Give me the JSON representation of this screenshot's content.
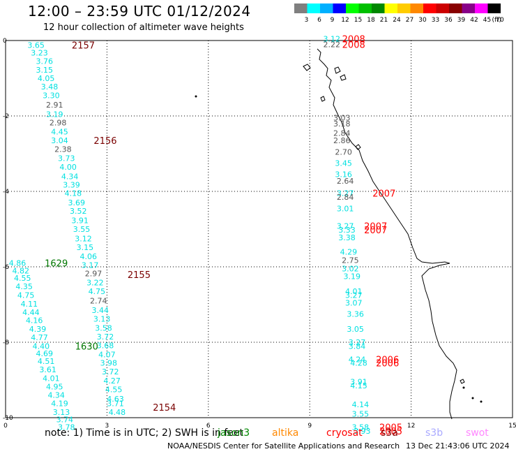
{
  "header": {
    "title": "12:00 – 23:59 UTC 01/12/2024",
    "subtitle": "12 hour collection of altimeter wave heights"
  },
  "legend": {
    "bins": [
      {
        "label": "3",
        "color": "#7f7f7f"
      },
      {
        "label": "6",
        "color": "#00ffff"
      },
      {
        "label": "9",
        "color": "#00b0ff"
      },
      {
        "label": "12",
        "color": "#0000ff"
      },
      {
        "label": "15",
        "color": "#00ff00"
      },
      {
        "label": "18",
        "color": "#00c000"
      },
      {
        "label": "21",
        "color": "#008800"
      },
      {
        "label": "24",
        "color": "#ffff00"
      },
      {
        "label": "27",
        "color": "#ffcc00"
      },
      {
        "label": "30",
        "color": "#ff8800"
      },
      {
        "label": "33",
        "color": "#ff0000"
      },
      {
        "label": "36",
        "color": "#cc0000"
      },
      {
        "label": "39",
        "color": "#880000"
      },
      {
        "label": "42",
        "color": "#880088"
      },
      {
        "label": "45",
        "color": "#ff00ff"
      },
      {
        "label": "70",
        "color": "#000000"
      }
    ],
    "unit": "(ft)"
  },
  "axes": {
    "x_ticks": [
      "0",
      "3",
      "6",
      "9",
      "12",
      "15"
    ],
    "y_ticks": [
      "0",
      "-2",
      "-4",
      "-6",
      "-8",
      "-10"
    ]
  },
  "colors": {
    "cyan": "#00e0e0",
    "gray": "#555555",
    "darkred": "#7a0000",
    "red": "#ff0000",
    "green": "#007700"
  },
  "tracks": {
    "track_2157": {
      "id": "2157",
      "points": [
        {
          "x": 0.9,
          "y": -0.12,
          "v": "3.65",
          "c": "cyan"
        },
        {
          "x": 1.0,
          "y": -0.32,
          "v": "3.23",
          "c": "cyan"
        },
        {
          "x": 1.15,
          "y": -0.55,
          "v": "3.76",
          "c": "cyan"
        },
        {
          "x": 1.15,
          "y": -0.78,
          "v": "3.15",
          "c": "cyan"
        },
        {
          "x": 1.2,
          "y": -1.0,
          "v": "4.05",
          "c": "cyan"
        },
        {
          "x": 1.3,
          "y": -1.22,
          "v": "3.48",
          "c": "cyan"
        },
        {
          "x": 1.35,
          "y": -1.45,
          "v": "3.30",
          "c": "cyan"
        },
        {
          "x": 1.45,
          "y": -1.7,
          "v": "2.91",
          "c": "gray"
        },
        {
          "x": 1.45,
          "y": -1.95,
          "v": "3.19",
          "c": "cyan"
        },
        {
          "x": 1.55,
          "y": -2.18,
          "v": "2.98",
          "c": "gray"
        },
        {
          "x": 1.6,
          "y": -2.42,
          "v": "4.45",
          "c": "cyan"
        },
        {
          "x": 1.6,
          "y": -2.65,
          "v": "3.04",
          "c": "cyan"
        },
        {
          "x": 1.7,
          "y": -2.88,
          "v": "2.38",
          "c": "gray"
        },
        {
          "x": 1.8,
          "y": -3.12,
          "v": "3.73",
          "c": "cyan"
        },
        {
          "x": 1.85,
          "y": -3.35,
          "v": "4.00",
          "c": "cyan"
        },
        {
          "x": 1.9,
          "y": -3.6,
          "v": "4.34",
          "c": "cyan"
        },
        {
          "x": 1.95,
          "y": -3.82,
          "v": "3.39",
          "c": "cyan"
        },
        {
          "x": 2.0,
          "y": -4.05,
          "v": "4.18",
          "c": "cyan"
        },
        {
          "x": 2.1,
          "y": -4.3,
          "v": "3.69",
          "c": "cyan"
        },
        {
          "x": 2.15,
          "y": -4.52,
          "v": "3.52",
          "c": "cyan"
        },
        {
          "x": 2.2,
          "y": -4.77,
          "v": "3.91",
          "c": "cyan"
        },
        {
          "x": 2.25,
          "y": -5.0,
          "v": "3.55",
          "c": "cyan"
        },
        {
          "x": 2.3,
          "y": -5.25,
          "v": "3.12",
          "c": "cyan"
        },
        {
          "x": 2.35,
          "y": -5.48,
          "v": "3.15",
          "c": "cyan"
        },
        {
          "x": 2.45,
          "y": -5.72,
          "v": "4.06",
          "c": "cyan"
        },
        {
          "x": 2.5,
          "y": -5.95,
          "v": "3.17",
          "c": "cyan"
        }
      ]
    },
    "track_2155": {
      "id": "2155",
      "points": [
        {
          "x": 2.6,
          "y": -6.18,
          "v": "2.97",
          "c": "gray"
        },
        {
          "x": 2.65,
          "y": -6.42,
          "v": "3.22",
          "c": "cyan"
        },
        {
          "x": 2.7,
          "y": -6.65,
          "v": "4.75",
          "c": "cyan"
        },
        {
          "x": 2.75,
          "y": -6.9,
          "v": "2.74",
          "c": "gray"
        },
        {
          "x": 2.8,
          "y": -7.15,
          "v": "3.44",
          "c": "cyan"
        },
        {
          "x": 2.85,
          "y": -7.38,
          "v": "3.13",
          "c": "cyan"
        },
        {
          "x": 2.9,
          "y": -7.62,
          "v": "3.58",
          "c": "cyan"
        },
        {
          "x": 2.95,
          "y": -7.85,
          "v": "3.72",
          "c": "cyan"
        },
        {
          "x": 2.95,
          "y": -8.08,
          "v": "3.68",
          "c": "cyan"
        },
        {
          "x": 3.0,
          "y": -8.32,
          "v": "4.07",
          "c": "cyan"
        },
        {
          "x": 3.05,
          "y": -8.55,
          "v": "3.98",
          "c": "cyan"
        },
        {
          "x": 3.1,
          "y": -8.78,
          "v": "3.72",
          "c": "cyan"
        },
        {
          "x": 3.15,
          "y": -9.02,
          "v": "4.27",
          "c": "cyan"
        },
        {
          "x": 3.2,
          "y": -9.25,
          "v": "4.55",
          "c": "cyan"
        },
        {
          "x": 3.25,
          "y": -9.5,
          "v": "4.63",
          "c": "cyan"
        },
        {
          "x": 3.25,
          "y": -9.62,
          "v": "3.71",
          "c": "cyan"
        },
        {
          "x": 3.3,
          "y": -9.85,
          "v": "4.48",
          "c": "cyan"
        }
      ]
    },
    "track_1629": {
      "id": "1629",
      "points": [
        {
          "x": 0.35,
          "y": -5.9,
          "v": "4.86",
          "c": "cyan"
        },
        {
          "x": 0.45,
          "y": -6.1,
          "v": "4.82",
          "c": "cyan"
        },
        {
          "x": 0.5,
          "y": -6.3,
          "v": "4.55",
          "c": "cyan"
        },
        {
          "x": 0.55,
          "y": -6.52,
          "v": "4.35",
          "c": "cyan"
        },
        {
          "x": 0.6,
          "y": -6.75,
          "v": "4.75",
          "c": "cyan"
        },
        {
          "x": 0.7,
          "y": -6.98,
          "v": "4.11",
          "c": "cyan"
        },
        {
          "x": 0.75,
          "y": -7.2,
          "v": "4.44",
          "c": "cyan"
        },
        {
          "x": 0.85,
          "y": -7.42,
          "v": "4.16",
          "c": "cyan"
        },
        {
          "x": 0.95,
          "y": -7.65,
          "v": "4.39",
          "c": "cyan"
        },
        {
          "x": 1.0,
          "y": -7.87,
          "v": "4.77",
          "c": "cyan"
        },
        {
          "x": 1.05,
          "y": -8.1,
          "v": "4.40",
          "c": "cyan"
        }
      ]
    },
    "track_1630": {
      "id": "1630",
      "points": [
        {
          "x": 1.15,
          "y": -8.3,
          "v": "4.69",
          "c": "cyan"
        },
        {
          "x": 1.2,
          "y": -8.5,
          "v": "4.51",
          "c": "cyan"
        },
        {
          "x": 1.25,
          "y": -8.72,
          "v": "3.61",
          "c": "cyan"
        },
        {
          "x": 1.35,
          "y": -8.95,
          "v": "4.01",
          "c": "cyan"
        },
        {
          "x": 1.45,
          "y": -9.18,
          "v": "4.95",
          "c": "cyan"
        },
        {
          "x": 1.5,
          "y": -9.4,
          "v": "4.34",
          "c": "cyan"
        },
        {
          "x": 1.6,
          "y": -9.62,
          "v": "4.19",
          "c": "cyan"
        },
        {
          "x": 1.65,
          "y": -9.85,
          "v": "3.13",
          "c": "cyan"
        },
        {
          "x": 1.75,
          "y": -10.05,
          "v": "3.74",
          "c": "cyan"
        },
        {
          "x": 1.8,
          "y": -10.25,
          "v": "3.78",
          "c": "cyan"
        }
      ]
    },
    "track_2008": {
      "id": "2008",
      "points": [
        {
          "x": 9.65,
          "y": 0.05,
          "v": "3.12",
          "c": "cyan"
        },
        {
          "x": 9.65,
          "y": -0.1,
          "v": "2.22",
          "c": "gray"
        }
      ]
    },
    "track_2007": {
      "id": "2007",
      "points": [
        {
          "x": 9.95,
          "y": -2.05,
          "v": "3.03",
          "c": "gray"
        },
        {
          "x": 9.95,
          "y": -2.2,
          "v": "3.18",
          "c": "gray"
        },
        {
          "x": 9.95,
          "y": -2.45,
          "v": "2.84",
          "c": "gray"
        },
        {
          "x": 9.95,
          "y": -2.65,
          "v": "2.86",
          "c": "gray"
        },
        {
          "x": 10.0,
          "y": -2.95,
          "v": "2.70",
          "c": "gray"
        },
        {
          "x": 10.0,
          "y": -3.25,
          "v": "3.45",
          "c": "cyan"
        },
        {
          "x": 10.0,
          "y": -3.55,
          "v": "3.16",
          "c": "cyan"
        },
        {
          "x": 10.05,
          "y": -3.72,
          "v": "2.64",
          "c": "gray"
        },
        {
          "x": 10.05,
          "y": -4.05,
          "v": "3.27",
          "c": "cyan"
        },
        {
          "x": 10.05,
          "y": -4.15,
          "v": "2.84",
          "c": "gray"
        },
        {
          "x": 10.05,
          "y": -4.45,
          "v": "3.01",
          "c": "cyan"
        },
        {
          "x": 10.05,
          "y": -4.92,
          "v": "3.27",
          "c": "cyan"
        },
        {
          "x": 10.1,
          "y": -5.02,
          "v": "3.33",
          "c": "cyan"
        },
        {
          "x": 10.1,
          "y": -5.22,
          "v": "3.38",
          "c": "cyan"
        },
        {
          "x": 10.15,
          "y": -5.6,
          "v": "4.29",
          "c": "cyan"
        },
        {
          "x": 10.2,
          "y": -5.82,
          "v": "2.75",
          "c": "gray"
        }
      ]
    },
    "track_2006": {
      "id": "2006",
      "points": [
        {
          "x": 10.2,
          "y": -6.05,
          "v": "3.02",
          "c": "cyan"
        },
        {
          "x": 10.25,
          "y": -6.25,
          "v": "3.19",
          "c": "cyan"
        },
        {
          "x": 10.3,
          "y": -6.65,
          "v": "4.01",
          "c": "cyan"
        },
        {
          "x": 10.3,
          "y": -6.75,
          "v": "3.27",
          "c": "cyan"
        },
        {
          "x": 10.3,
          "y": -6.95,
          "v": "3.07",
          "c": "cyan"
        },
        {
          "x": 10.35,
          "y": -7.25,
          "v": "3.36",
          "c": "cyan"
        },
        {
          "x": 10.35,
          "y": -7.65,
          "v": "3.05",
          "c": "cyan"
        },
        {
          "x": 10.4,
          "y": -8.0,
          "v": "3.27",
          "c": "cyan"
        },
        {
          "x": 10.4,
          "y": -8.1,
          "v": "3.84",
          "c": "cyan"
        },
        {
          "x": 10.4,
          "y": -8.45,
          "v": "4.24",
          "c": "cyan"
        },
        {
          "x": 10.45,
          "y": -8.55,
          "v": "4.28",
          "c": "cyan"
        },
        {
          "x": 10.45,
          "y": -9.05,
          "v": "3.91",
          "c": "cyan"
        },
        {
          "x": 10.45,
          "y": -9.15,
          "v": "4.15",
          "c": "cyan"
        }
      ]
    },
    "track_2005": {
      "id": "2005",
      "points": [
        {
          "x": 10.5,
          "y": -9.65,
          "v": "4.14",
          "c": "cyan"
        },
        {
          "x": 10.5,
          "y": -9.9,
          "v": "3.55",
          "c": "cyan"
        },
        {
          "x": 10.5,
          "y": -10.25,
          "v": "3.58",
          "c": "cyan"
        },
        {
          "x": 10.55,
          "y": -10.35,
          "v": "3.93",
          "c": "cyan"
        }
      ]
    }
  },
  "track_labels": [
    {
      "t": "2157",
      "x": 2.3,
      "y": -0.12,
      "c": "darkred"
    },
    {
      "t": "2156",
      "x": 2.95,
      "y": -2.65,
      "c": "darkred"
    },
    {
      "t": "2155",
      "x": 3.95,
      "y": -6.2,
      "c": "darkred"
    },
    {
      "t": "2154",
      "x": 4.7,
      "y": -9.72,
      "c": "darkred"
    },
    {
      "t": "1629",
      "x": 1.5,
      "y": -5.9,
      "c": "green"
    },
    {
      "t": "1630",
      "x": 2.4,
      "y": -8.1,
      "c": "green"
    },
    {
      "t": "2008",
      "x": 10.3,
      "y": 0.05,
      "c": "red"
    },
    {
      "t": "2008",
      "x": 10.3,
      "y": -0.1,
      "c": "red"
    },
    {
      "t": "2007",
      "x": 11.2,
      "y": -4.05,
      "c": "red"
    },
    {
      "t": "2007",
      "x": 10.95,
      "y": -4.92,
      "c": "red"
    },
    {
      "t": "2007",
      "x": 10.95,
      "y": -5.02,
      "c": "red"
    },
    {
      "t": "2006",
      "x": 11.3,
      "y": -8.45,
      "c": "red"
    },
    {
      "t": "2006",
      "x": 11.3,
      "y": -8.55,
      "c": "red"
    },
    {
      "t": "2005",
      "x": 11.4,
      "y": -10.25,
      "c": "red"
    },
    {
      "t": "2005",
      "x": 11.4,
      "y": -10.35,
      "c": "red"
    }
  ],
  "footer": {
    "note": "note:  1) Time is in UTC;  2) SWH is in feet",
    "satellites": [
      {
        "name": "jason3",
        "color": "#008800"
      },
      {
        "name": "altika",
        "color": "#ff8800"
      },
      {
        "name": "cryosat",
        "color": "#ff0000"
      },
      {
        "name": "s3a",
        "color": "#880000"
      },
      {
        "name": "s3b",
        "color": "#aaaaff"
      },
      {
        "name": "swot",
        "color": "#ff88ff"
      }
    ],
    "credit": "NOAA/NESDIS Center for Satellite Applications and Research",
    "date": "13 Dec 21:43:06 UTC 2024"
  }
}
